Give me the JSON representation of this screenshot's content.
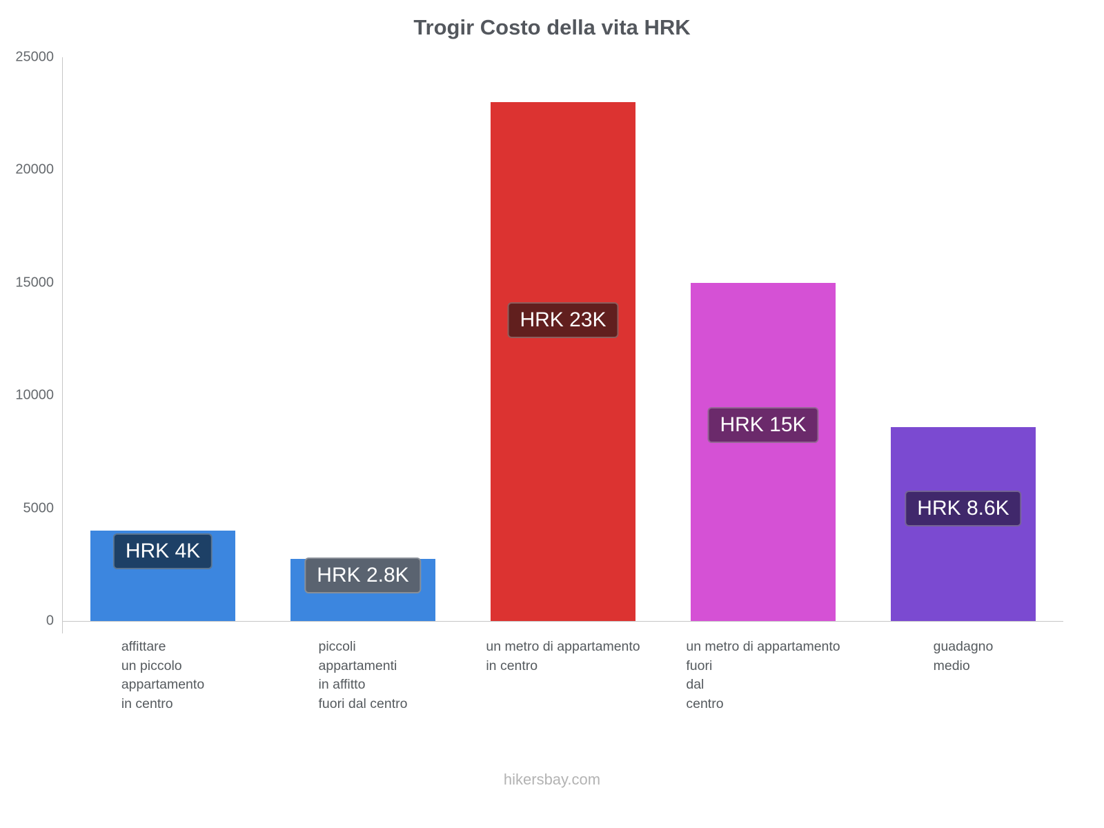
{
  "title": "Trogir Costo della vita HRK",
  "footer": "hikersbay.com",
  "chart_data": {
    "type": "bar",
    "title": "Trogir Costo della vita HRK",
    "xlabel": "",
    "ylabel": "",
    "ylim": [
      0,
      25000
    ],
    "yticks": [
      0,
      5000,
      10000,
      15000,
      20000,
      25000
    ],
    "grid": false,
    "legend": false,
    "categories": [
      "affittare un piccolo appartamento in centro",
      "piccoli appartamenti in affitto fuori dal centro",
      "un metro di appartamento in centro",
      "un metro di appartamento fuori dal centro",
      "guadagno medio"
    ],
    "category_lines": [
      [
        "affittare",
        "un piccolo",
        "appartamento",
        "in centro"
      ],
      [
        "piccoli",
        "appartamenti",
        "in affitto",
        "fuori dal centro"
      ],
      [
        "un metro di appartamento",
        "in centro"
      ],
      [
        "un metro di appartamento",
        "fuori",
        "dal",
        "centro"
      ],
      [
        "guadagno",
        "medio"
      ]
    ],
    "values": [
      4000,
      2750,
      23000,
      15000,
      8600
    ],
    "value_labels": [
      "HRK 4K",
      "HRK 2.8K",
      "HRK 23K",
      "HRK 15K",
      "HRK 8.6K"
    ],
    "bar_colors": [
      "#3c86df",
      "#3c86df",
      "#dc3331",
      "#d551d5",
      "#7b4ad1"
    ],
    "value_label_colors": [
      "#1d4066",
      "#5a6370",
      "#611f1e",
      "#6b2a6b",
      "#40286b"
    ],
    "currency": "HRK"
  }
}
